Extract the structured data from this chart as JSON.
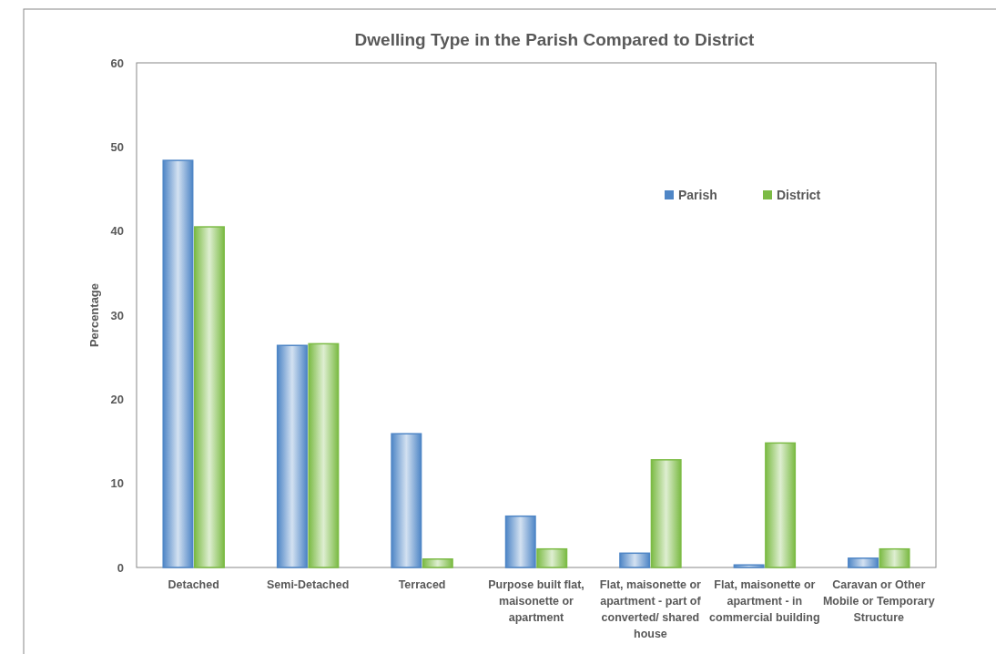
{
  "chart_data": {
    "type": "bar",
    "title": "Dwelling Type in the Parish Compared to District",
    "ylabel": "Percentage",
    "categories": [
      "Detached",
      "Semi-Detached",
      "Terraced",
      "Purpose built flat, maisonette or apartment",
      "Flat, maisonette or apartment - part of converted/ shared house",
      "Flat, maisonette or apartment - in commercial building",
      "Caravan or Other Mobile or Temporary Structure"
    ],
    "series": [
      {
        "name": "Parish",
        "color": "#4f86c6",
        "values": [
          48.4,
          26.4,
          15.9,
          6.1,
          1.7,
          0.3,
          1.1
        ]
      },
      {
        "name": "District",
        "color": "#7cbb45",
        "values": [
          40.5,
          26.6,
          1.0,
          2.2,
          12.8,
          14.8,
          2.2
        ]
      }
    ],
    "ylim": [
      0,
      60
    ],
    "yticks": [
      0,
      10,
      20,
      30,
      40,
      50,
      60
    ],
    "grid": false,
    "legend": "top right"
  }
}
